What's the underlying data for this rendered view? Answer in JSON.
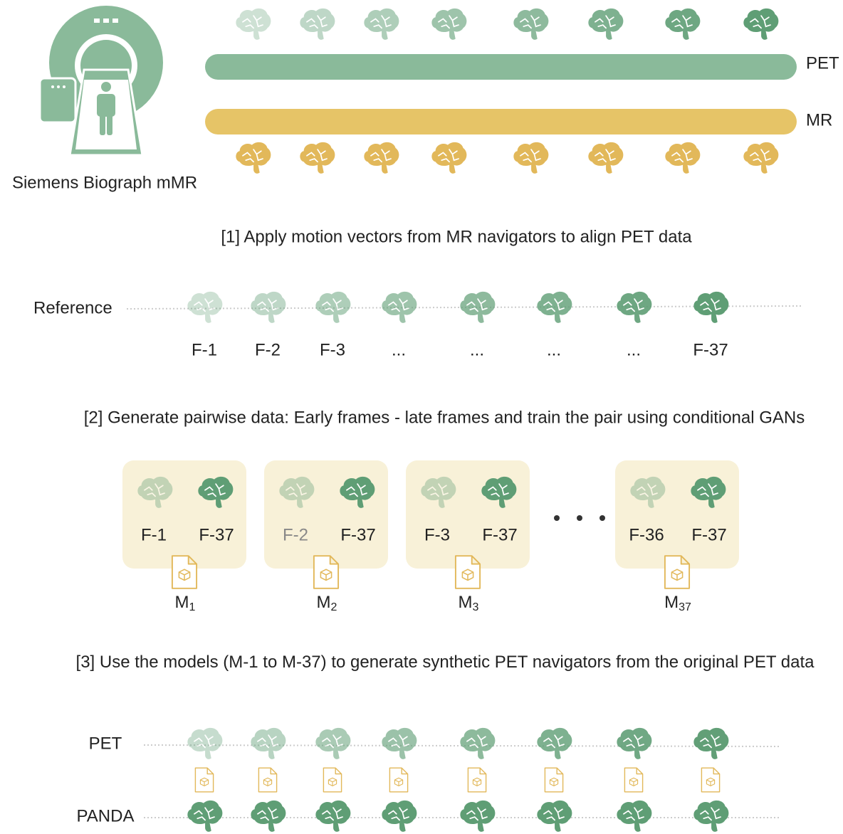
{
  "scanner": {
    "label": "Siemens Biograph mMR"
  },
  "tracks": [
    "PET",
    "MR"
  ],
  "steps": [
    {
      "title": "[1] Apply motion vectors from MR navigators to align PET data"
    },
    {
      "title": "[2]  Generate pairwise data: Early frames - late frames and train the pair using conditional GANs"
    },
    {
      "title": "[3]  Use the models (M-1 to M-37) to generate synthetic PET navigators from the original PET data"
    }
  ],
  "reference": {
    "label": "Reference",
    "frames": [
      "F-1",
      "F-2",
      "F-3",
      "...",
      "...",
      "...",
      "...",
      "F-37"
    ]
  },
  "pairs": [
    {
      "early": "F-1",
      "late": "F-37",
      "model": "M",
      "index": "1"
    },
    {
      "early": "F-2",
      "late": "F-37",
      "model": "M",
      "index": "2"
    },
    {
      "early": "F-3",
      "late": "F-37",
      "model": "M",
      "index": "3"
    },
    {
      "early": "F-36",
      "late": "F-37",
      "model": "M",
      "index": "37"
    }
  ],
  "rows": [
    "PET",
    "PANDA"
  ]
}
